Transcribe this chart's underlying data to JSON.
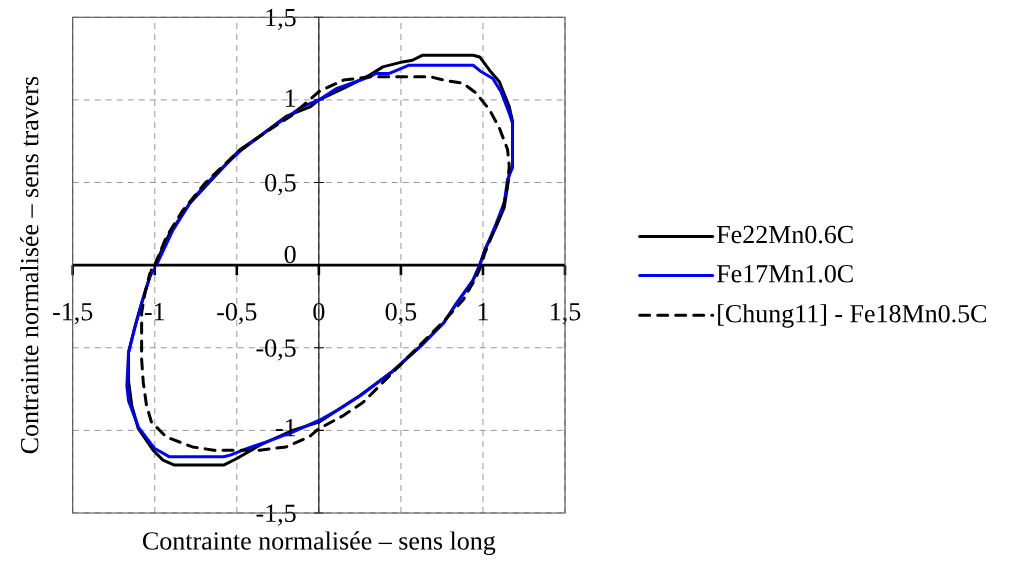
{
  "chart_data": {
    "type": "line",
    "xlabel": "Contrainte normalisée – sens long",
    "ylabel": "Contrainte normalisée – sens travers",
    "xlim": [
      -1.5,
      1.5
    ],
    "ylim": [
      -1.5,
      1.5
    ],
    "xticks": [
      {
        "value": -1.5,
        "label": "-1,5"
      },
      -1,
      {
        "value": -0.5,
        "label": "-0,5"
      },
      0,
      {
        "value": 0.5,
        "label": "0,5"
      },
      1,
      {
        "value": 1.5,
        "label": "1,5"
      }
    ],
    "yticks": [
      {
        "value": -1.5,
        "label": "-1,5"
      },
      -1,
      {
        "value": -0.5,
        "label": "-0,5"
      },
      0,
      {
        "value": 0.5,
        "label": "0,5"
      },
      1,
      {
        "value": 1.5,
        "label": "1,5"
      }
    ],
    "grid": true,
    "legend": "right",
    "series": [
      {
        "name": "Fe22Mn0.6C",
        "color": "#000000",
        "line_style": "solid",
        "x": [
          -1.0,
          -0.91,
          -0.79,
          -0.66,
          -0.48,
          -0.36,
          -0.2,
          -0.05,
          0.0,
          0.15,
          0.31,
          0.39,
          0.51,
          0.57,
          0.63,
          0.94,
          0.98,
          1.04,
          1.1,
          1.16,
          1.18,
          1.18,
          1.16,
          1.13,
          1.07,
          1.01,
          0.98,
          0.94,
          0.84,
          0.76,
          0.62,
          0.44,
          0.25,
          0.11,
          0.0,
          -0.16,
          -0.36,
          -0.5,
          -0.58,
          -0.88,
          -0.95,
          -1.01,
          -1.1,
          -1.14,
          -1.16,
          -1.16,
          -1.12,
          -1.08,
          -1.03,
          -1.02
        ],
        "values": [
          0.0,
          0.19,
          0.37,
          0.51,
          0.7,
          0.78,
          0.9,
          0.96,
          1.0,
          1.07,
          1.15,
          1.2,
          1.23,
          1.24,
          1.27,
          1.27,
          1.26,
          1.18,
          1.11,
          0.96,
          0.87,
          0.6,
          0.55,
          0.35,
          0.21,
          0.09,
          0.0,
          -0.09,
          -0.23,
          -0.35,
          -0.49,
          -0.65,
          -0.79,
          -0.88,
          -0.95,
          -1.0,
          -1.09,
          -1.17,
          -1.21,
          -1.21,
          -1.18,
          -1.12,
          -0.99,
          -0.85,
          -0.7,
          -0.53,
          -0.37,
          -0.23,
          -0.07,
          -0.03
        ]
      },
      {
        "name": "Fe17Mn1.0C",
        "color": "#0000ff",
        "line_style": "solid",
        "x": [
          -0.99,
          -0.89,
          -0.77,
          -0.62,
          -0.48,
          -0.32,
          -0.1,
          0.0,
          0.11,
          0.31,
          0.35,
          0.43,
          0.55,
          0.94,
          0.99,
          1.06,
          1.11,
          1.16,
          1.18,
          1.18,
          1.15,
          1.13,
          1.08,
          1.02,
          0.98,
          0.94,
          0.84,
          0.76,
          0.62,
          0.44,
          0.25,
          0.11,
          0.0,
          -0.16,
          -0.32,
          -0.44,
          -0.54,
          -0.58,
          -0.91,
          -1.0,
          -1.1,
          -1.16,
          -1.17,
          -1.16,
          -1.12,
          -1.08,
          -1.03,
          -1.01
        ],
        "values": [
          0.0,
          0.21,
          0.4,
          0.56,
          0.69,
          0.81,
          0.96,
          1.0,
          1.07,
          1.14,
          1.16,
          1.16,
          1.21,
          1.21,
          1.17,
          1.13,
          1.05,
          0.92,
          0.86,
          0.59,
          0.52,
          0.38,
          0.25,
          0.11,
          0.0,
          -0.09,
          -0.23,
          -0.35,
          -0.49,
          -0.65,
          -0.79,
          -0.88,
          -0.94,
          -1.01,
          -1.07,
          -1.11,
          -1.15,
          -1.16,
          -1.16,
          -1.11,
          -0.98,
          -0.82,
          -0.73,
          -0.53,
          -0.37,
          -0.23,
          -0.07,
          -0.03
        ]
      },
      {
        "name": "[Chung11] - Fe18Mn0.5C",
        "color": "#000000",
        "line_style": "dashed",
        "x": [
          -1.0,
          -0.93,
          -0.83,
          -0.69,
          -0.5,
          -0.36,
          -0.16,
          0.0,
          0.15,
          0.31,
          0.68,
          0.76,
          0.88,
          0.96,
          1.04,
          1.1,
          1.15,
          1.16,
          1.15,
          1.12,
          1.06,
          1.01,
          0.99,
          0.96,
          0.88,
          0.76,
          0.6,
          0.37,
          0.27,
          0.15,
          0.0,
          -0.06,
          -0.2,
          -0.36,
          -0.64,
          -0.77,
          -0.93,
          -1.02,
          -1.05,
          -1.07,
          -1.08,
          -1.08,
          -1.06,
          -1.03
        ],
        "values": [
          0.0,
          0.17,
          0.33,
          0.5,
          0.68,
          0.78,
          0.91,
          1.05,
          1.12,
          1.14,
          1.14,
          1.12,
          1.1,
          1.04,
          0.94,
          0.83,
          0.7,
          0.6,
          0.48,
          0.33,
          0.19,
          0.07,
          0.0,
          -0.07,
          -0.21,
          -0.34,
          -0.5,
          -0.73,
          -0.83,
          -0.91,
          -0.99,
          -1.04,
          -1.1,
          -1.12,
          -1.12,
          -1.1,
          -1.04,
          -0.95,
          -0.85,
          -0.71,
          -0.57,
          -0.29,
          -0.17,
          -0.05
        ]
      }
    ]
  }
}
